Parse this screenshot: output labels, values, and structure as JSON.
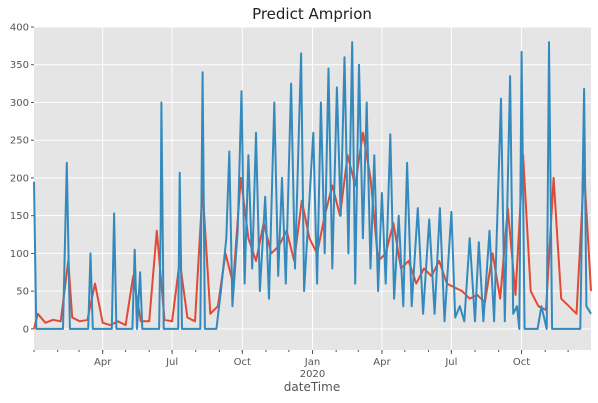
{
  "chart_data": {
    "type": "line",
    "title": "Predict Amprion",
    "xlabel": "dateTime",
    "ylabel": "",
    "x_start": "2019-01-01",
    "x_end": "2020-12-31",
    "ylim": [
      -28,
      400
    ],
    "yticks": [
      0,
      50,
      100,
      150,
      200,
      250,
      300,
      350,
      400
    ],
    "xticks": [
      {
        "date": "2019-04-01",
        "label": "Apr",
        "sublabel": ""
      },
      {
        "date": "2019-07-01",
        "label": "Jul",
        "sublabel": ""
      },
      {
        "date": "2019-10-01",
        "label": "Oct",
        "sublabel": ""
      },
      {
        "date": "2020-01-01",
        "label": "Jan",
        "sublabel": "2020"
      },
      {
        "date": "2020-04-01",
        "label": "Apr",
        "sublabel": ""
      },
      {
        "date": "2020-07-01",
        "label": "Jul",
        "sublabel": ""
      },
      {
        "date": "2020-10-01",
        "label": "Oct",
        "sublabel": ""
      }
    ],
    "grid": true,
    "background": "#e5e5e5",
    "series": [
      {
        "name": "",
        "color": "#e24a33",
        "points": [
          [
            "2019-01-01",
            0
          ],
          [
            "2019-01-06",
            20
          ],
          [
            "2019-01-16",
            8
          ],
          [
            "2019-01-26",
            12
          ],
          [
            "2019-02-05",
            10
          ],
          [
            "2019-02-15",
            90
          ],
          [
            "2019-02-20",
            15
          ],
          [
            "2019-03-02",
            10
          ],
          [
            "2019-03-12",
            12
          ],
          [
            "2019-03-22",
            60
          ],
          [
            "2019-04-01",
            8
          ],
          [
            "2019-04-11",
            5
          ],
          [
            "2019-04-21",
            10
          ],
          [
            "2019-05-01",
            5
          ],
          [
            "2019-05-11",
            70
          ],
          [
            "2019-05-21",
            10
          ],
          [
            "2019-06-01",
            10
          ],
          [
            "2019-06-11",
            130
          ],
          [
            "2019-06-21",
            12
          ],
          [
            "2019-07-01",
            10
          ],
          [
            "2019-07-11",
            90
          ],
          [
            "2019-07-21",
            15
          ],
          [
            "2019-07-31",
            10
          ],
          [
            "2019-08-10",
            185
          ],
          [
            "2019-08-20",
            20
          ],
          [
            "2019-08-30",
            30
          ],
          [
            "2019-09-09",
            100
          ],
          [
            "2019-09-19",
            60
          ],
          [
            "2019-09-29",
            200
          ],
          [
            "2019-10-09",
            120
          ],
          [
            "2019-10-19",
            90
          ],
          [
            "2019-10-29",
            140
          ],
          [
            "2019-11-08",
            100
          ],
          [
            "2019-11-18",
            110
          ],
          [
            "2019-11-28",
            130
          ],
          [
            "2019-12-08",
            90
          ],
          [
            "2019-12-18",
            170
          ],
          [
            "2019-12-28",
            120
          ],
          [
            "2020-01-07",
            100
          ],
          [
            "2020-01-17",
            150
          ],
          [
            "2020-01-27",
            190
          ],
          [
            "2020-02-06",
            150
          ],
          [
            "2020-02-16",
            230
          ],
          [
            "2020-02-26",
            190
          ],
          [
            "2020-03-07",
            260
          ],
          [
            "2020-03-17",
            200
          ],
          [
            "2020-03-27",
            90
          ],
          [
            "2020-04-06",
            100
          ],
          [
            "2020-04-16",
            140
          ],
          [
            "2020-04-26",
            80
          ],
          [
            "2020-05-06",
            90
          ],
          [
            "2020-05-16",
            60
          ],
          [
            "2020-05-26",
            80
          ],
          [
            "2020-06-05",
            70
          ],
          [
            "2020-06-15",
            90
          ],
          [
            "2020-06-25",
            60
          ],
          [
            "2020-07-05",
            55
          ],
          [
            "2020-07-15",
            50
          ],
          [
            "2020-07-25",
            40
          ],
          [
            "2020-08-04",
            45
          ],
          [
            "2020-08-14",
            35
          ],
          [
            "2020-08-24",
            100
          ],
          [
            "2020-09-03",
            40
          ],
          [
            "2020-09-13",
            160
          ],
          [
            "2020-09-23",
            45
          ],
          [
            "2020-10-03",
            230
          ],
          [
            "2020-10-13",
            50
          ],
          [
            "2020-10-23",
            30
          ],
          [
            "2020-11-02",
            25
          ],
          [
            "2020-11-12",
            200
          ],
          [
            "2020-11-22",
            40
          ],
          [
            "2020-12-02",
            30
          ],
          [
            "2020-12-12",
            20
          ],
          [
            "2020-12-22",
            210
          ],
          [
            "2020-12-31",
            50
          ]
        ]
      },
      {
        "name": "",
        "color": "#348abd",
        "points": [
          [
            "2019-01-01",
            195
          ],
          [
            "2019-01-04",
            0
          ],
          [
            "2019-02-08",
            0
          ],
          [
            "2019-02-13",
            220
          ],
          [
            "2019-02-17",
            0
          ],
          [
            "2019-03-13",
            0
          ],
          [
            "2019-03-16",
            100
          ],
          [
            "2019-03-19",
            0
          ],
          [
            "2019-04-13",
            0
          ],
          [
            "2019-04-16",
            153
          ],
          [
            "2019-04-19",
            0
          ],
          [
            "2019-05-10",
            0
          ],
          [
            "2019-05-13",
            105
          ],
          [
            "2019-05-16",
            0
          ],
          [
            "2019-05-20",
            75
          ],
          [
            "2019-05-23",
            0
          ],
          [
            "2019-06-14",
            0
          ],
          [
            "2019-06-16",
            140
          ],
          [
            "2019-06-17",
            300
          ],
          [
            "2019-06-20",
            0
          ],
          [
            "2019-07-09",
            0
          ],
          [
            "2019-07-11",
            207
          ],
          [
            "2019-07-14",
            0
          ],
          [
            "2019-08-07",
            0
          ],
          [
            "2019-08-10",
            340
          ],
          [
            "2019-08-13",
            0
          ],
          [
            "2019-08-28",
            0
          ],
          [
            "2019-09-03",
            50
          ],
          [
            "2019-09-10",
            120
          ],
          [
            "2019-09-14",
            235
          ],
          [
            "2019-09-18",
            30
          ],
          [
            "2019-09-25",
            130
          ],
          [
            "2019-09-30",
            315
          ],
          [
            "2019-10-04",
            60
          ],
          [
            "2019-10-09",
            230
          ],
          [
            "2019-10-14",
            80
          ],
          [
            "2019-10-19",
            260
          ],
          [
            "2019-10-24",
            50
          ],
          [
            "2019-10-31",
            175
          ],
          [
            "2019-11-05",
            40
          ],
          [
            "2019-11-12",
            300
          ],
          [
            "2019-11-17",
            70
          ],
          [
            "2019-11-22",
            200
          ],
          [
            "2019-11-27",
            60
          ],
          [
            "2019-12-04",
            325
          ],
          [
            "2019-12-09",
            80
          ],
          [
            "2019-12-17",
            365
          ],
          [
            "2019-12-21",
            50
          ],
          [
            "2020-01-02",
            260
          ],
          [
            "2020-01-07",
            60
          ],
          [
            "2020-01-12",
            300
          ],
          [
            "2020-01-17",
            100
          ],
          [
            "2020-01-22",
            345
          ],
          [
            "2020-01-27",
            80
          ],
          [
            "2020-02-02",
            320
          ],
          [
            "2020-02-07",
            150
          ],
          [
            "2020-02-12",
            360
          ],
          [
            "2020-02-17",
            100
          ],
          [
            "2020-02-22",
            380
          ],
          [
            "2020-02-26",
            60
          ],
          [
            "2020-03-02",
            350
          ],
          [
            "2020-03-07",
            120
          ],
          [
            "2020-03-12",
            300
          ],
          [
            "2020-03-17",
            80
          ],
          [
            "2020-03-22",
            230
          ],
          [
            "2020-03-27",
            50
          ],
          [
            "2020-04-01",
            180
          ],
          [
            "2020-04-06",
            60
          ],
          [
            "2020-04-12",
            258
          ],
          [
            "2020-04-17",
            40
          ],
          [
            "2020-04-23",
            150
          ],
          [
            "2020-04-29",
            30
          ],
          [
            "2020-05-04",
            220
          ],
          [
            "2020-05-10",
            30
          ],
          [
            "2020-05-18",
            160
          ],
          [
            "2020-05-25",
            20
          ],
          [
            "2020-06-02",
            145
          ],
          [
            "2020-06-09",
            20
          ],
          [
            "2020-06-16",
            160
          ],
          [
            "2020-06-22",
            10
          ],
          [
            "2020-07-01",
            155
          ],
          [
            "2020-07-06",
            15
          ],
          [
            "2020-07-12",
            30
          ],
          [
            "2020-07-18",
            10
          ],
          [
            "2020-07-25",
            120
          ],
          [
            "2020-08-01",
            10
          ],
          [
            "2020-08-06",
            115
          ],
          [
            "2020-08-12",
            10
          ],
          [
            "2020-08-20",
            130
          ],
          [
            "2020-08-26",
            10
          ],
          [
            "2020-09-04",
            305
          ],
          [
            "2020-09-09",
            10
          ],
          [
            "2020-09-16",
            335
          ],
          [
            "2020-09-20",
            20
          ],
          [
            "2020-09-25",
            30
          ],
          [
            "2020-09-28",
            0
          ],
          [
            "2020-10-01",
            367
          ],
          [
            "2020-10-05",
            0
          ],
          [
            "2020-10-22",
            0
          ],
          [
            "2020-10-27",
            30
          ],
          [
            "2020-11-03",
            0
          ],
          [
            "2020-11-06",
            380
          ],
          [
            "2020-11-10",
            0
          ],
          [
            "2020-12-17",
            0
          ],
          [
            "2020-12-22",
            318
          ],
          [
            "2020-12-25",
            30
          ],
          [
            "2020-12-31",
            20
          ]
        ]
      }
    ]
  }
}
